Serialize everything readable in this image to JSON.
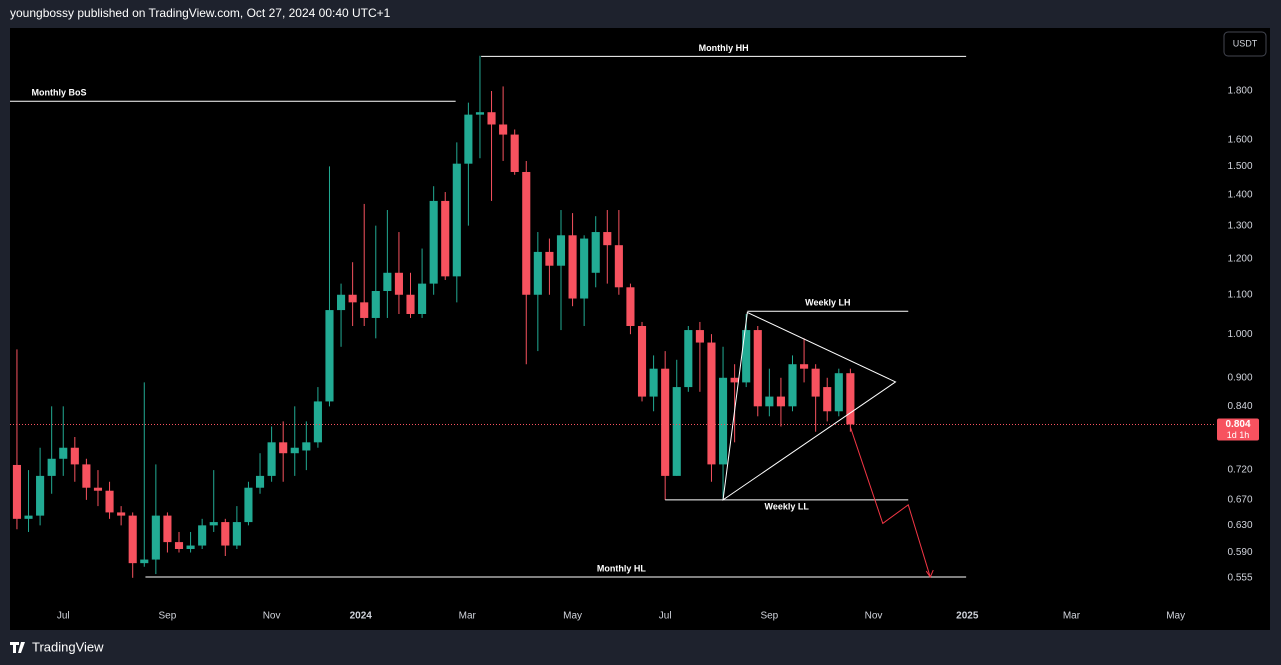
{
  "header": "youngbossy published on TradingView.com, Oct 27, 2024 00:40 UTC+1",
  "brand": "TradingView",
  "chart_data": {
    "type": "candlestick",
    "currency": "USDT",
    "log_scale": true,
    "up_color": "#22ab94",
    "down_color": "#f7525f",
    "x": [
      0,
      1,
      2,
      3,
      4,
      5,
      6,
      7,
      8,
      9,
      10,
      11,
      12,
      13,
      14,
      15,
      16,
      17,
      18,
      19,
      20,
      21,
      22,
      23,
      24,
      25,
      26,
      27,
      28,
      29,
      30,
      31,
      32,
      33,
      34,
      35,
      36,
      37,
      38,
      39,
      40,
      41,
      42,
      43,
      44,
      45,
      46,
      47,
      48,
      49,
      50,
      51,
      52,
      53,
      54,
      55,
      56,
      57,
      58,
      59,
      60,
      61,
      62,
      63,
      64,
      65,
      66,
      67,
      68,
      69,
      70,
      71,
      72
    ],
    "open": [
      0.729,
      0.64,
      0.645,
      0.71,
      0.74,
      0.76,
      0.73,
      0.69,
      0.685,
      0.65,
      0.645,
      0.575,
      0.58,
      0.645,
      0.605,
      0.595,
      0.6,
      0.63,
      0.635,
      0.6,
      0.635,
      0.69,
      0.71,
      0.77,
      0.75,
      0.755,
      0.77,
      0.85,
      1.06,
      1.1,
      1.08,
      1.04,
      1.11,
      1.16,
      1.1,
      1.05,
      1.13,
      1.38,
      1.15,
      1.51,
      1.7,
      1.71,
      1.66,
      1.62,
      1.48,
      1.1,
      1.22,
      1.18,
      1.27,
      1.09,
      1.16,
      1.28,
      1.24,
      1.12,
      1.02,
      0.86,
      0.92,
      0.71,
      0.88,
      1.01,
      0.98,
      0.73,
      0.9,
      0.89,
      1.01,
      0.84,
      0.86,
      0.84,
      0.93,
      0.92,
      0.88,
      0.83,
      0.91
    ],
    "high": [
      0.964,
      0.72,
      0.76,
      0.84,
      0.84,
      0.78,
      0.74,
      0.72,
      0.7,
      0.66,
      0.65,
      0.89,
      0.73,
      0.65,
      0.62,
      0.62,
      0.64,
      0.72,
      0.64,
      0.66,
      0.7,
      0.75,
      0.8,
      0.81,
      0.84,
      0.81,
      0.88,
      1.5,
      1.13,
      1.19,
      1.37,
      1.3,
      1.35,
      1.28,
      1.16,
      1.23,
      1.43,
      1.41,
      1.59,
      1.75,
      1.96,
      1.8,
      1.82,
      1.64,
      1.52,
      1.28,
      1.26,
      1.35,
      1.34,
      1.27,
      1.33,
      1.35,
      1.35,
      1.13,
      1.03,
      0.95,
      0.96,
      0.94,
      1.02,
      1.03,
      1.0,
      0.97,
      0.93,
      1.05,
      1.02,
      0.92,
      0.9,
      0.95,
      0.99,
      0.93,
      0.9,
      0.92,
      0.92
    ],
    "low": [
      0.624,
      0.62,
      0.63,
      0.68,
      0.71,
      0.7,
      0.67,
      0.66,
      0.64,
      0.63,
      0.555,
      0.57,
      0.56,
      0.59,
      0.59,
      0.59,
      0.595,
      0.62,
      0.585,
      0.595,
      0.63,
      0.68,
      0.7,
      0.7,
      0.71,
      0.72,
      0.76,
      0.84,
      0.97,
      1.02,
      1.02,
      0.99,
      1.04,
      1.05,
      1.04,
      1.04,
      1.1,
      1.14,
      1.08,
      1.3,
      1.53,
      1.38,
      1.52,
      1.47,
      0.93,
      0.96,
      1.1,
      1.01,
      1.07,
      1.02,
      1.12,
      1.13,
      1.1,
      1.0,
      0.85,
      0.83,
      0.67,
      0.71,
      0.87,
      0.87,
      0.7,
      0.67,
      0.77,
      0.88,
      0.82,
      0.82,
      0.8,
      0.83,
      0.89,
      0.79,
      0.81,
      0.82,
      0.79
    ],
    "close": [
      0.64,
      0.645,
      0.71,
      0.74,
      0.76,
      0.73,
      0.69,
      0.685,
      0.65,
      0.645,
      0.575,
      0.58,
      0.645,
      0.605,
      0.595,
      0.6,
      0.63,
      0.635,
      0.6,
      0.635,
      0.69,
      0.71,
      0.77,
      0.75,
      0.76,
      0.77,
      0.85,
      1.06,
      1.1,
      1.08,
      1.04,
      1.11,
      1.16,
      1.1,
      1.05,
      1.13,
      1.38,
      1.15,
      1.51,
      1.7,
      1.71,
      1.66,
      1.62,
      1.48,
      1.1,
      1.22,
      1.18,
      1.27,
      1.09,
      1.26,
      1.28,
      1.24,
      1.12,
      1.02,
      0.86,
      0.92,
      0.71,
      0.88,
      1.01,
      0.98,
      0.73,
      0.9,
      0.89,
      1.01,
      0.84,
      0.86,
      0.84,
      0.93,
      0.92,
      0.86,
      0.83,
      0.91,
      0.804
    ],
    "current_price": 0.804,
    "countdown": "1d 1h",
    "xlim": [
      -0.6,
      103.5
    ],
    "xticks": [
      {
        "value": 4.0,
        "label": "Jul"
      },
      {
        "value": 13.0,
        "label": "Sep"
      },
      {
        "value": 22.0,
        "label": "Nov"
      },
      {
        "value": 29.7,
        "label": "2024"
      },
      {
        "value": 38.9,
        "label": "Mar"
      },
      {
        "value": 48.0,
        "label": "May"
      },
      {
        "value": 56.0,
        "label": "Jul"
      },
      {
        "value": 65.0,
        "label": "Sep"
      },
      {
        "value": 74.0,
        "label": "Nov"
      },
      {
        "value": 82.1,
        "label": "2025"
      },
      {
        "value": 91.1,
        "label": "Mar"
      },
      {
        "value": 100.1,
        "label": "May"
      }
    ],
    "ylim": [
      0.526,
      2.096
    ],
    "yticks": [
      0.555,
      {
        "value": 0.59,
        "label": "0.590"
      },
      {
        "value": 0.63,
        "label": "0.630"
      },
      {
        "value": 0.67,
        "label": "0.670"
      },
      {
        "value": 0.72,
        "label": "0.720"
      },
      {
        "value": 0.84,
        "label": "0.840"
      },
      {
        "value": 0.9,
        "label": "0.900"
      },
      {
        "value": 1.0,
        "label": "1.000"
      },
      {
        "value": 1.1,
        "label": "1.100"
      },
      {
        "value": 1.2,
        "label": "1.200"
      },
      {
        "value": 1.3,
        "label": "1.300"
      },
      {
        "value": 1.4,
        "label": "1.400"
      },
      {
        "value": 1.5,
        "label": "1.500"
      },
      {
        "value": 1.6,
        "label": "1.600"
      },
      {
        "value": 1.8,
        "label": "1.800"
      }
    ],
    "levels": [
      {
        "text": "Monthly BoS",
        "y": 1.756,
        "x": [
          -0.6,
          37.9
        ]
      },
      {
        "text": "Monthly HH",
        "y": 1.957,
        "x": [
          40.1,
          82.0
        ]
      },
      {
        "text": "Weekly LH",
        "y": 1.057,
        "x": [
          63.1,
          77.0
        ]
      },
      {
        "text": "Weekly LL",
        "y": 0.67,
        "x": [
          56.0,
          77.0
        ]
      },
      {
        "text": "Monthly HL",
        "y": 0.556,
        "x": [
          11.1,
          82.0
        ]
      }
    ],
    "triangle": {
      "x": [
        63.1,
        75.9,
        61.0
      ],
      "y": [
        1.054,
        0.891,
        0.67
      ]
    },
    "projection": {
      "x": [
        72.0,
        74.8,
        77.0,
        78.9
      ],
      "y": [
        0.799,
        0.633,
        0.662,
        0.556
      ]
    }
  }
}
